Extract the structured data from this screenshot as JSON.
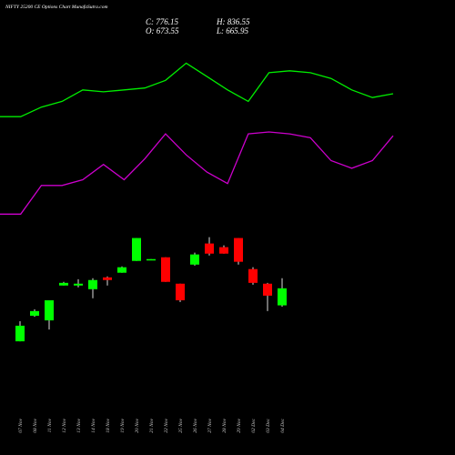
{
  "chart_data": [
    {
      "type": "candlestick",
      "title": "NIFTY 25200 CE Options Chart MunafaSutra.com",
      "info": [
        "C: 776.15",
        "H: 836.55",
        "O: 673.55",
        "L: 665.95"
      ],
      "categories": [
        "07 Nov",
        "08 Nov",
        "11 Nov",
        "12 Nov",
        "13 Nov",
        "14 Nov",
        "18 Nov",
        "19 Nov",
        "20 Nov",
        "21 Nov",
        "22 Nov",
        "25 Nov",
        "26 Nov",
        "27 Nov",
        "28 Nov",
        "29 Nov",
        "02 Dec",
        "03 Dec",
        "04 Dec"
      ],
      "open": [
        457,
        611,
        583,
        793,
        793,
        771,
        842,
        870,
        941,
        946,
        963,
        804,
        919,
        1046,
        1024,
        1079,
        892,
        804,
        673.55
      ],
      "high": [
        578,
        650,
        704,
        815,
        831,
        837,
        848,
        908,
        1079,
        952,
        963,
        804,
        991,
        1084,
        1035,
        1079,
        903,
        809,
        836.55
      ],
      "low": [
        457,
        605,
        528,
        793,
        782,
        716,
        793,
        870,
        941,
        946,
        815,
        694,
        913,
        974,
        985,
        919,
        798,
        639,
        665.95
      ],
      "close": [
        551,
        639,
        704,
        809,
        804,
        826,
        826,
        903,
        1079,
        952,
        815,
        704,
        980,
        985,
        985,
        936,
        809,
        732,
        776.15
      ],
      "up_color": "#00ff00",
      "down_color": "#ff0000",
      "ylim": [
        430,
        1115
      ]
    },
    {
      "type": "line",
      "categories": [
        null,
        null,
        null,
        null,
        null,
        null,
        null,
        null,
        null,
        null,
        null,
        null,
        null,
        null,
        null,
        null,
        null,
        null,
        null,
        null
      ],
      "series": [
        {
          "color": "#00ee00",
          "values": [
            58,
            58,
            63,
            66,
            72,
            71,
            72,
            73,
            77,
            86,
            79,
            72,
            66,
            81,
            82,
            81,
            78,
            72,
            68,
            70
          ]
        },
        {
          "color": "#cc00cc",
          "values": [
            7,
            7,
            22,
            22,
            25,
            33,
            25,
            36,
            49,
            38,
            29,
            23,
            49,
            50,
            49,
            47,
            35,
            31,
            35,
            48
          ]
        }
      ],
      "ylim": [
        0,
        100
      ]
    }
  ]
}
